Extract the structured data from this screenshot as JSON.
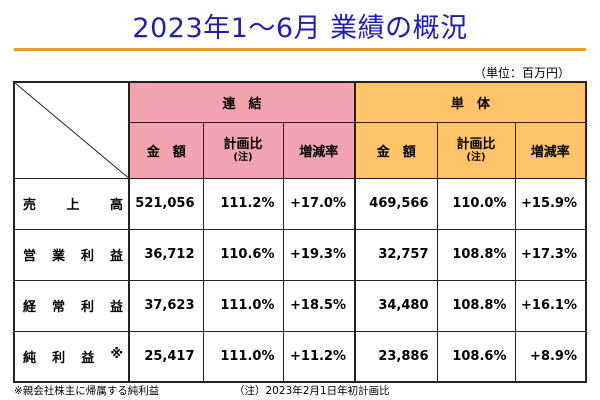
{
  "title": "2023年1～6月 業績の概況",
  "unit": "（単位：百万円）",
  "groups": {
    "consolidated": "連　結",
    "single": "単　体"
  },
  "subheaders": {
    "amount": "金　額",
    "plan_ratio": "計画比",
    "plan_ratio_note": "(注)",
    "change_rate": "増減率"
  },
  "rows": [
    {
      "label_chars": [
        "売",
        "上",
        "高"
      ],
      "cons": {
        "amount": "521,056",
        "plan_ratio": "111.2%",
        "change_rate": "+17.0%"
      },
      "single": {
        "amount": "469,566",
        "plan_ratio": "110.0%",
        "change_rate": "+15.9%"
      }
    },
    {
      "label_chars": [
        "営",
        "業",
        "利",
        "益"
      ],
      "cons": {
        "amount": "36,712",
        "plan_ratio": "110.6%",
        "change_rate": "+19.3%"
      },
      "single": {
        "amount": "32,757",
        "plan_ratio": "108.8%",
        "change_rate": "+17.3%"
      }
    },
    {
      "label_chars": [
        "経",
        "常",
        "利",
        "益"
      ],
      "cons": {
        "amount": "37,623",
        "plan_ratio": "111.0%",
        "change_rate": "+18.5%"
      },
      "single": {
        "amount": "34,480",
        "plan_ratio": "108.8%",
        "change_rate": "+16.1%"
      }
    },
    {
      "label_chars": [
        "純",
        "利",
        "益",
        "※"
      ],
      "cons": {
        "amount": "25,417",
        "plan_ratio": "111.0%",
        "change_rate": "+11.2%"
      },
      "single": {
        "amount": "23,886",
        "plan_ratio": "108.6%",
        "change_rate": "+8.9%"
      }
    }
  ],
  "footnotes": {
    "left": "※親会社株主に帰属する純利益",
    "right": "（注）2023年2月1日年初計画比"
  },
  "colors": {
    "title": "#1f1fb0",
    "rule": "#f0a020",
    "consolidated_bg": "#f3a3b0",
    "single_bg": "#ffc36a"
  }
}
